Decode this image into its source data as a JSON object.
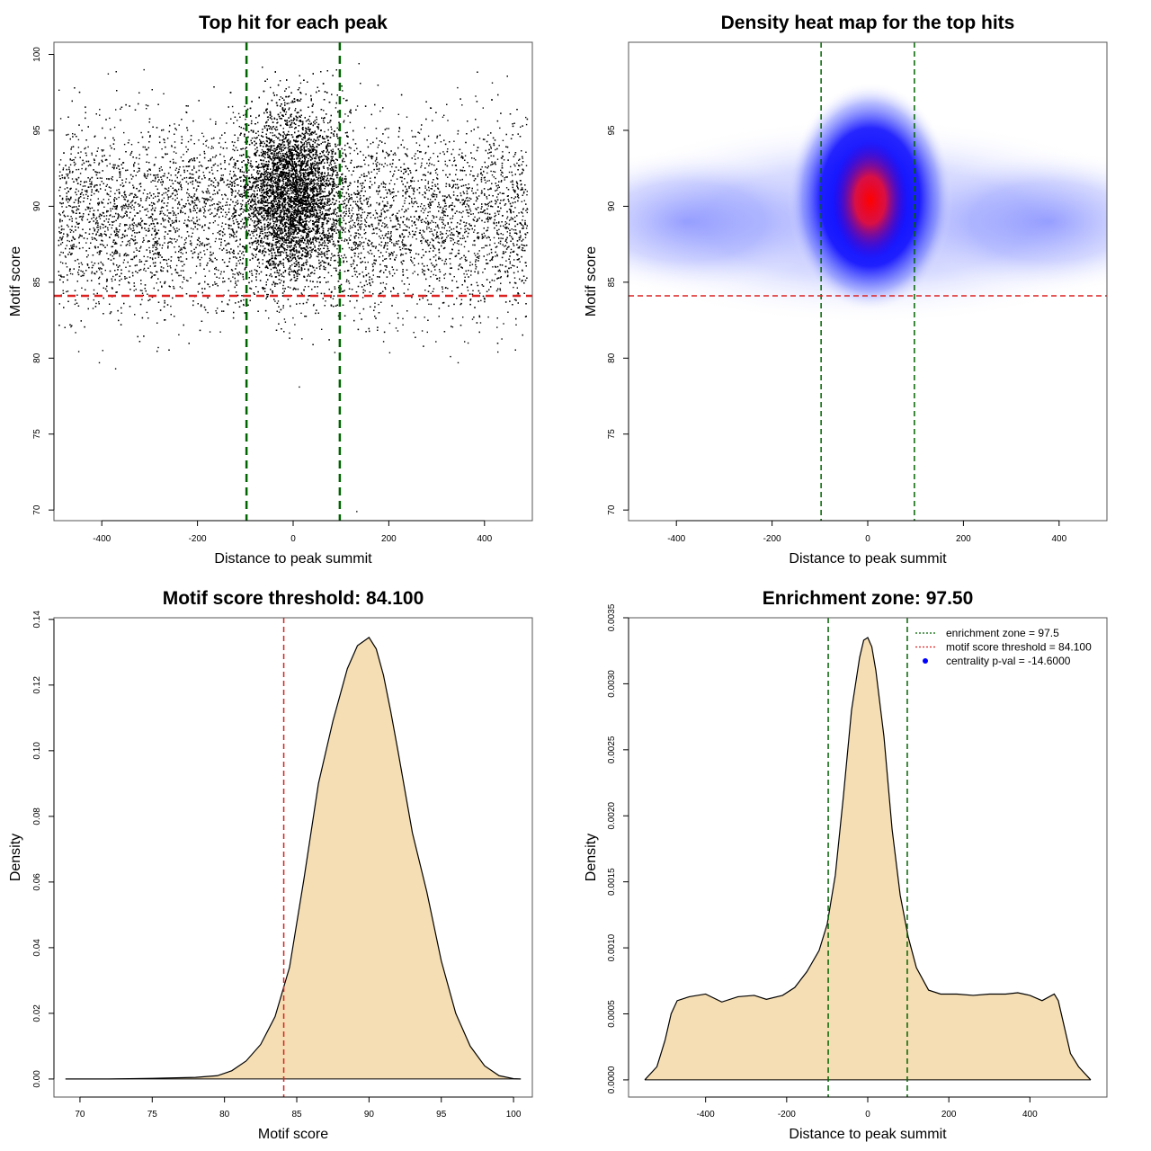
{
  "chart_data": [
    {
      "type": "scatter",
      "title": "Top hit for each peak",
      "xlabel": "Distance to peak summit",
      "ylabel": "Motif score",
      "xlim": [
        -500,
        500
      ],
      "ylim": [
        69.3,
        100.8
      ],
      "xticks": [
        -400,
        -200,
        0,
        200,
        400
      ],
      "yticks": [
        70,
        75,
        80,
        85,
        90,
        95,
        100
      ],
      "point_color": "#000000",
      "vlines": {
        "values": [
          -97.5,
          97.5
        ],
        "color": "#006400",
        "style": "dashed"
      },
      "hlines": {
        "values": [
          84.1
        ],
        "color": "#dd2222",
        "style": "dashed"
      },
      "distribution": {
        "background": {
          "x_range": [
            -490,
            490
          ],
          "score_mean": 89.2,
          "score_sd": 3.1
        },
        "central": {
          "x_mean": 0,
          "x_sd": 48,
          "score_mean": 91.0,
          "score_sd": 2.6
        },
        "outliers": [
          {
            "x": 13,
            "y": 78.1
          },
          {
            "x": 133,
            "y": 69.9
          },
          {
            "x": -371,
            "y": 79.3
          },
          {
            "x": -405,
            "y": 79.7
          },
          {
            "x": 345,
            "y": 79.7
          },
          {
            "x": 329,
            "y": 80.1
          },
          {
            "x": -398,
            "y": 80.5
          },
          {
            "x": -282,
            "y": 80.7
          },
          {
            "x": 428,
            "y": 80.4
          }
        ]
      }
    },
    {
      "type": "heatmap",
      "title": "Density heat map for the top hits",
      "xlabel": "Distance to peak summit",
      "ylabel": "Motif score",
      "xlim": [
        -500,
        500
      ],
      "ylim": [
        69.3,
        100.8
      ],
      "xticks": [
        -400,
        -200,
        0,
        200,
        400
      ],
      "yticks": [
        70,
        75,
        80,
        85,
        90,
        95
      ],
      "colors": [
        "#ffffff",
        "#0000ff",
        "#ff0000"
      ],
      "peak": {
        "x": 5,
        "y": 90.4
      },
      "vlines": {
        "values": [
          -97.5,
          97.5
        ],
        "color": "#006400",
        "style": "dashed"
      },
      "hlines": {
        "values": [
          84.1
        ],
        "color": "#dd2222",
        "style": "dashed"
      }
    },
    {
      "type": "area",
      "title": "Motif score threshold: 84.100",
      "xlabel": "Motif score",
      "ylabel": "Density",
      "xlim": [
        68.2,
        101.3
      ],
      "ylim": [
        -0.0055,
        0.1405
      ],
      "xticks": [
        70,
        75,
        80,
        85,
        90,
        95,
        100
      ],
      "yticks": [
        0.0,
        0.02,
        0.04,
        0.06,
        0.08,
        0.1,
        0.12,
        0.14
      ],
      "ytick_labels": [
        "0.00",
        "0.02",
        "0.04",
        "0.06",
        "0.08",
        "0.10",
        "0.12",
        "0.14"
      ],
      "fill_color": "#f5deb3",
      "x": [
        69,
        72,
        75,
        78,
        79.5,
        80.5,
        81.5,
        82.5,
        83.5,
        84.5,
        85.5,
        86.5,
        87.5,
        88.5,
        89.2,
        90.0,
        90.5,
        91.0,
        91.5,
        92.0,
        93.0,
        94.0,
        95.0,
        96.0,
        97.0,
        98.0,
        99.0,
        100.0,
        100.5
      ],
      "y": [
        0.0,
        0.0,
        0.0002,
        0.0005,
        0.001,
        0.0025,
        0.0055,
        0.0105,
        0.019,
        0.034,
        0.061,
        0.09,
        0.109,
        0.125,
        0.132,
        0.1345,
        0.131,
        0.123,
        0.112,
        0.1,
        0.075,
        0.057,
        0.036,
        0.02,
        0.01,
        0.004,
        0.001,
        0.0001,
        0.0
      ],
      "vlines": {
        "values": [
          84.1
        ],
        "color": "#dd2222",
        "style": "dashed"
      }
    },
    {
      "type": "area",
      "title": "Enrichment zone: 97.50",
      "xlabel": "Distance to peak summit",
      "ylabel": "Density",
      "xlim": [
        -590,
        590
      ],
      "ylim": [
        -0.00013,
        0.0035
      ],
      "xticks": [
        -400,
        -200,
        0,
        200,
        400
      ],
      "yticks": [
        0.0,
        0.0005,
        0.001,
        0.0015,
        0.002,
        0.0025,
        0.003,
        0.0035
      ],
      "ytick_labels": [
        "0.0000",
        "0.0005",
        "0.0010",
        "0.0015",
        "0.0020",
        "0.0025",
        "0.0030",
        "0.0035"
      ],
      "fill_color": "#f5deb3",
      "x": [
        -550,
        -520,
        -500,
        -485,
        -470,
        -440,
        -400,
        -360,
        -320,
        -280,
        -250,
        -210,
        -180,
        -150,
        -120,
        -100,
        -80,
        -60,
        -40,
        -20,
        -10,
        0,
        10,
        20,
        40,
        60,
        80,
        100,
        120,
        150,
        180,
        220,
        260,
        300,
        340,
        370,
        400,
        430,
        460,
        470,
        485,
        500,
        520,
        550
      ],
      "y": [
        0.0,
        0.0001,
        0.0003,
        0.0005,
        0.0006,
        0.00063,
        0.00065,
        0.00059,
        0.00063,
        0.00064,
        0.00061,
        0.00064,
        0.0007,
        0.00082,
        0.00098,
        0.00118,
        0.00155,
        0.00215,
        0.0028,
        0.0032,
        0.00333,
        0.00335,
        0.00328,
        0.0031,
        0.0026,
        0.0019,
        0.0014,
        0.00108,
        0.00085,
        0.00068,
        0.00065,
        0.00065,
        0.00064,
        0.00065,
        0.00065,
        0.00066,
        0.00064,
        0.0006,
        0.00065,
        0.0006,
        0.0004,
        0.0002,
        0.0001,
        0.0
      ],
      "vlines": {
        "values": [
          -97.5,
          97.5
        ],
        "color": "#006400",
        "style": "dashed"
      },
      "legend": {
        "position": "top-right",
        "entries": [
          {
            "label": "enrichment zone = 97.5",
            "color": "#006400",
            "marker": "dotted-line"
          },
          {
            "label": "motif score threshold = 84.100",
            "color": "#dd2222",
            "marker": "dotted-line"
          },
          {
            "label": "centrality p-val = -14.6000",
            "color": "#0000ff",
            "marker": "dot"
          }
        ]
      }
    }
  ]
}
